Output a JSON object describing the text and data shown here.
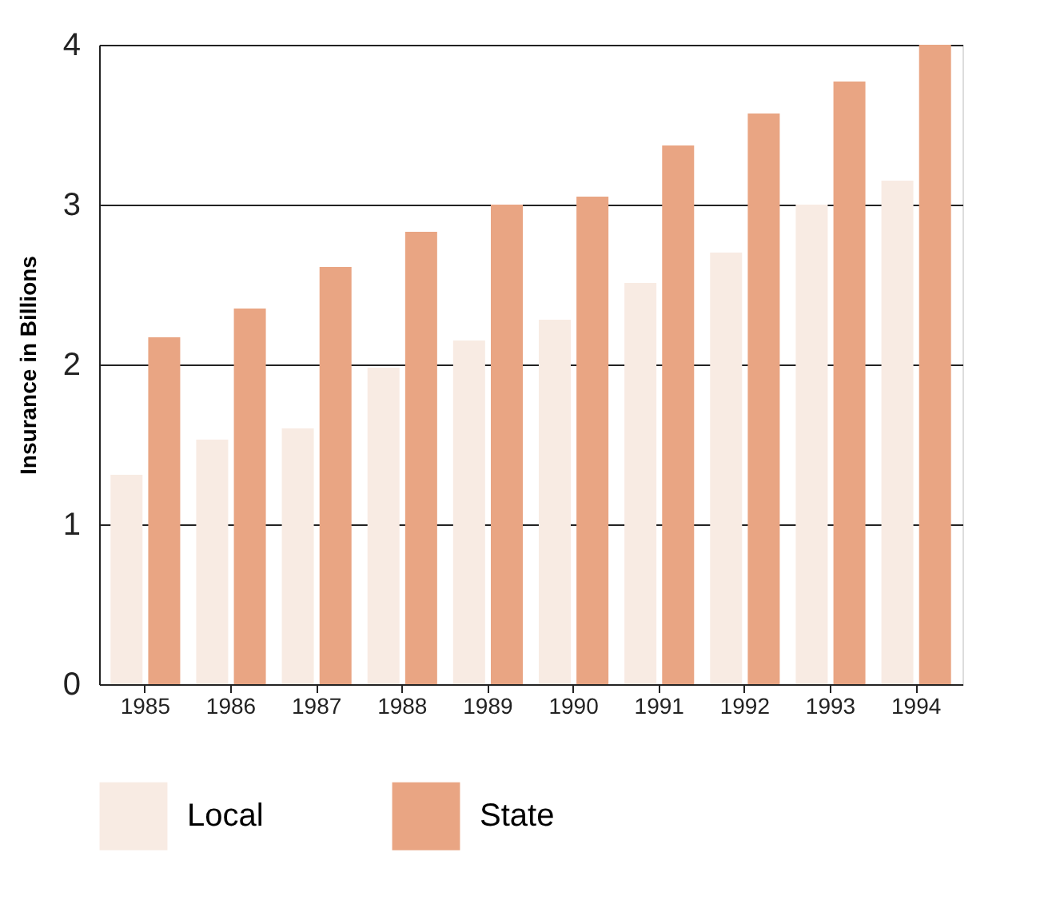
{
  "chart_data": {
    "type": "bar",
    "ylabel": "Insurance in Billions",
    "categories": [
      "1985",
      "1986",
      "1987",
      "1988",
      "1989",
      "1990",
      "1991",
      "1992",
      "1993",
      "1994"
    ],
    "series": [
      {
        "name": "Local",
        "color": "#f8ebe3",
        "values": [
          1.31,
          1.53,
          1.6,
          1.98,
          2.15,
          2.28,
          2.51,
          2.7,
          3.0,
          3.15
        ]
      },
      {
        "name": "State",
        "color": "#e9a583",
        "values": [
          2.17,
          2.35,
          2.61,
          2.83,
          3.0,
          3.05,
          3.37,
          3.57,
          3.77,
          4.0
        ]
      }
    ],
    "ylim": [
      0,
      4
    ],
    "yticks": [
      0,
      1,
      2,
      3,
      4
    ],
    "grid": "y",
    "legend": "bottom"
  }
}
